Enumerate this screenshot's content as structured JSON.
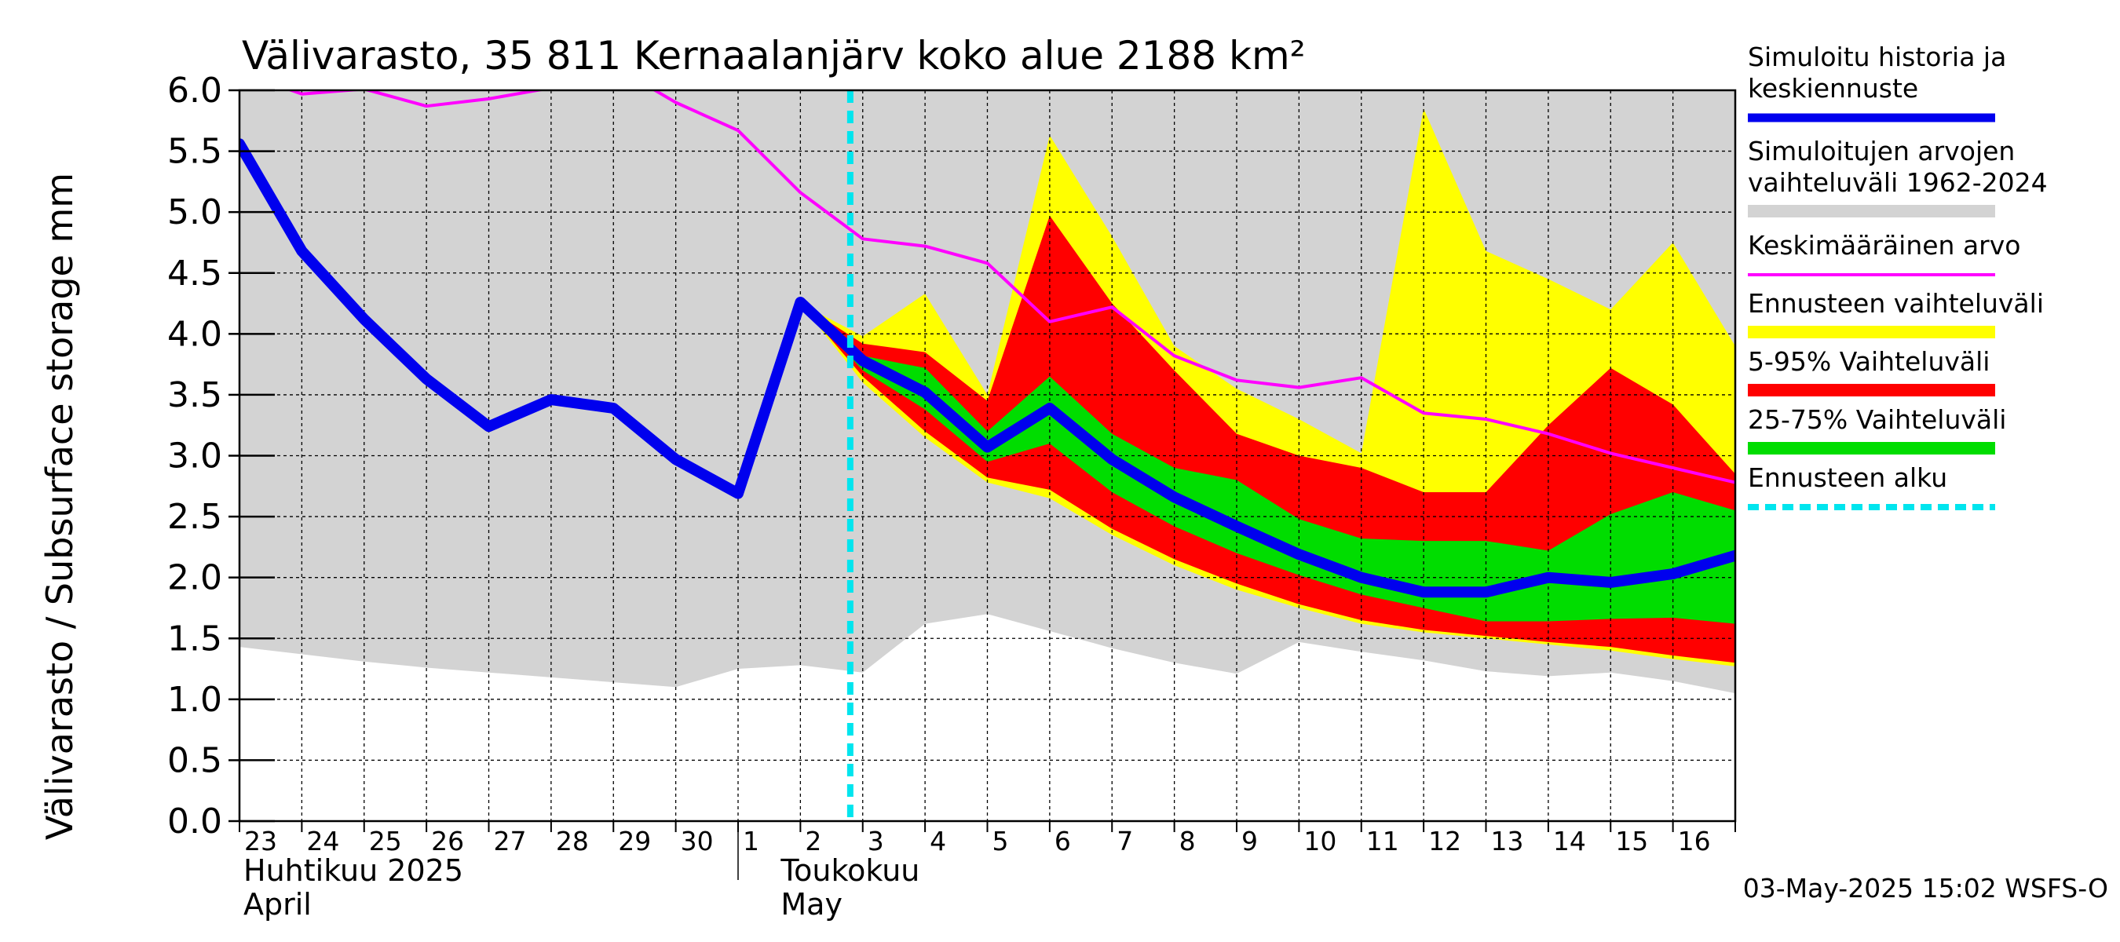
{
  "chart_data": {
    "type": "area",
    "title": "Välivarasto, 35 811 Kernaalanjärv koko alue 2188 km²",
    "ylabel": "Välivarasto / Subsurface storage  mm",
    "ylim": [
      0,
      6.0
    ],
    "yticks": [
      "0.0",
      "0.5",
      "1.0",
      "1.5",
      "2.0",
      "2.5",
      "3.0",
      "3.5",
      "4.0",
      "4.5",
      "5.0",
      "5.5",
      "6.0"
    ],
    "x_labels": [
      "23",
      "24",
      "25",
      "26",
      "27",
      "28",
      "29",
      "30",
      "1",
      "2",
      "3",
      "4",
      "5",
      "6",
      "7",
      "8",
      "9",
      "10",
      "11",
      "12",
      "13",
      "14",
      "15",
      "16"
    ],
    "x_dates": [
      "2025-04-23",
      "2025-04-24",
      "2025-04-25",
      "2025-04-26",
      "2025-04-27",
      "2025-04-28",
      "2025-04-29",
      "2025-04-30",
      "2025-05-01",
      "2025-05-02",
      "2025-05-03",
      "2025-05-04",
      "2025-05-05",
      "2025-05-06",
      "2025-05-07",
      "2025-05-08",
      "2025-05-09",
      "2025-05-10",
      "2025-05-11",
      "2025-05-12",
      "2025-05-13",
      "2025-05-14",
      "2025-05-15",
      "2025-05-16"
    ],
    "month_labels": [
      {
        "line1": "Huhtikuu  2025",
        "line2": "April"
      },
      {
        "line1": "Toukokuu",
        "line2": "May"
      }
    ],
    "forecast_start": "2025-05-03",
    "grid": true,
    "legend_position": "right",
    "series": [
      {
        "name": "Simuloitujen arvojen vaihteluväli 1962-2024",
        "color": "#d3d3d3",
        "kind": "band",
        "x": [
          "2025-04-23",
          "2025-04-24",
          "2025-04-25",
          "2025-04-26",
          "2025-04-27",
          "2025-04-28",
          "2025-04-29",
          "2025-04-30",
          "2025-05-01",
          "2025-05-02",
          "2025-05-03",
          "2025-05-04",
          "2025-05-05",
          "2025-05-06",
          "2025-05-07",
          "2025-05-08",
          "2025-05-09",
          "2025-05-10",
          "2025-05-11",
          "2025-05-12",
          "2025-05-13",
          "2025-05-14",
          "2025-05-15",
          "2025-05-16",
          "2025-05-17"
        ],
        "lower": [
          1.43,
          1.37,
          1.31,
          1.26,
          1.22,
          1.18,
          1.14,
          1.1,
          1.25,
          1.28,
          1.22,
          1.62,
          1.7,
          1.56,
          1.42,
          1.3,
          1.21,
          1.47,
          1.39,
          1.32,
          1.23,
          1.19,
          1.22,
          1.15,
          1.05
        ],
        "upper": [
          6.0,
          6.0,
          6.0,
          6.0,
          6.0,
          6.0,
          6.0,
          6.0,
          6.0,
          6.0,
          6.0,
          6.0,
          6.0,
          6.0,
          6.0,
          6.0,
          6.0,
          6.0,
          6.0,
          6.0,
          6.0,
          6.0,
          6.0,
          6.0,
          6.0
        ]
      },
      {
        "name": "Ennusteen vaihteluväli",
        "color": "#ffff00",
        "kind": "band",
        "x": [
          "2025-05-02",
          "2025-05-03",
          "2025-05-04",
          "2025-05-05",
          "2025-05-06",
          "2025-05-07",
          "2025-05-08",
          "2025-05-09",
          "2025-05-10",
          "2025-05-11",
          "2025-05-12",
          "2025-05-13",
          "2025-05-14",
          "2025-05-15",
          "2025-05-16",
          "2025-05-17"
        ],
        "lower": [
          4.25,
          3.6,
          3.15,
          2.78,
          2.65,
          2.35,
          2.1,
          1.9,
          1.75,
          1.62,
          1.55,
          1.5,
          1.45,
          1.4,
          1.33,
          1.27
        ],
        "upper": [
          4.25,
          3.98,
          4.33,
          3.5,
          5.63,
          4.8,
          3.9,
          3.55,
          3.3,
          3.02,
          5.85,
          4.68,
          4.45,
          4.2,
          4.75,
          3.9
        ]
      },
      {
        "name": "5-95% Vaihteluväli",
        "color": "#ff0000",
        "kind": "band",
        "x": [
          "2025-05-02",
          "2025-05-03",
          "2025-05-04",
          "2025-05-05",
          "2025-05-06",
          "2025-05-07",
          "2025-05-08",
          "2025-05-09",
          "2025-05-10",
          "2025-05-11",
          "2025-05-12",
          "2025-05-13",
          "2025-05-14",
          "2025-05-15",
          "2025-05-16",
          "2025-05-17"
        ],
        "lower": [
          4.25,
          3.65,
          3.2,
          2.82,
          2.72,
          2.4,
          2.15,
          1.95,
          1.78,
          1.65,
          1.57,
          1.52,
          1.47,
          1.43,
          1.36,
          1.3
        ],
        "upper": [
          4.25,
          3.92,
          3.85,
          3.45,
          4.97,
          4.25,
          3.7,
          3.18,
          3.0,
          2.9,
          2.7,
          2.7,
          3.25,
          3.72,
          3.42,
          2.85
        ]
      },
      {
        "name": "25-75% Vaihteluväli",
        "color": "#00dd00",
        "kind": "band",
        "x": [
          "2025-05-02",
          "2025-05-03",
          "2025-05-04",
          "2025-05-05",
          "2025-05-06",
          "2025-05-07",
          "2025-05-08",
          "2025-05-09",
          "2025-05-10",
          "2025-05-11",
          "2025-05-12",
          "2025-05-13",
          "2025-05-14",
          "2025-05-15",
          "2025-05-16",
          "2025-05-17"
        ],
        "lower": [
          4.25,
          3.7,
          3.38,
          2.95,
          3.1,
          2.7,
          2.42,
          2.2,
          2.02,
          1.86,
          1.75,
          1.64,
          1.64,
          1.66,
          1.67,
          1.62
        ],
        "upper": [
          4.25,
          3.82,
          3.72,
          3.2,
          3.65,
          3.18,
          2.9,
          2.8,
          2.48,
          2.32,
          2.3,
          2.3,
          2.22,
          2.52,
          2.7,
          2.55
        ]
      },
      {
        "name": "Keskimääräinen arvo",
        "color": "#ff00ff",
        "kind": "line",
        "x": [
          "2025-04-23",
          "2025-04-24",
          "2025-04-25",
          "2025-04-26",
          "2025-04-27",
          "2025-04-28",
          "2025-04-29",
          "2025-04-30",
          "2025-05-01",
          "2025-05-02",
          "2025-05-03",
          "2025-05-04",
          "2025-05-05",
          "2025-05-06",
          "2025-05-07",
          "2025-05-08",
          "2025-05-09",
          "2025-05-10",
          "2025-05-11",
          "2025-05-12",
          "2025-05-13",
          "2025-05-14",
          "2025-05-15",
          "2025-05-16",
          "2025-05-17"
        ],
        "values": [
          6.15,
          5.97,
          6.01,
          5.87,
          5.93,
          6.02,
          6.2,
          5.9,
          5.67,
          5.16,
          4.78,
          4.72,
          4.58,
          4.1,
          4.22,
          3.82,
          3.62,
          3.56,
          3.64,
          3.35,
          3.3,
          3.18,
          3.02,
          2.9,
          2.78
        ]
      },
      {
        "name": "Simuloitu historia ja keskiennuste",
        "color": "#0000ee",
        "kind": "line",
        "x": [
          "2025-04-23",
          "2025-04-24",
          "2025-04-25",
          "2025-04-26",
          "2025-04-27",
          "2025-04-28",
          "2025-04-29",
          "2025-04-30",
          "2025-05-01",
          "2025-05-02",
          "2025-05-03",
          "2025-05-04",
          "2025-05-05",
          "2025-05-06",
          "2025-05-07",
          "2025-05-08",
          "2025-05-09",
          "2025-05-10",
          "2025-05-11",
          "2025-05-12",
          "2025-05-13",
          "2025-05-14",
          "2025-05-15",
          "2025-05-16",
          "2025-05-17"
        ],
        "values": [
          5.56,
          4.68,
          4.12,
          3.63,
          3.24,
          3.46,
          3.39,
          2.97,
          2.69,
          4.26,
          3.78,
          3.52,
          3.07,
          3.39,
          2.97,
          2.66,
          2.42,
          2.19,
          2.0,
          1.88,
          1.88,
          2.0,
          1.96,
          2.03,
          2.18
        ]
      },
      {
        "name": "Ennusteen alku",
        "color": "#00e5ee",
        "kind": "marker-line"
      }
    ],
    "legend": [
      {
        "label": "Simuloitu historia ja keskiennuste",
        "lines": [
          "Simuloitu historia ja",
          "keskiennuste"
        ],
        "color": "#0000ee",
        "style": "thick"
      },
      {
        "label": "Simuloitujen arvojen vaihteluväli 1962-2024",
        "lines": [
          "Simuloitujen arvojen",
          "vaihteluväli 1962-2024"
        ],
        "color": "#d3d3d3",
        "style": "band"
      },
      {
        "label": "Keskimääräinen arvo",
        "lines": [
          "Keskimääräinen arvo"
        ],
        "color": "#ff00ff",
        "style": "thin"
      },
      {
        "label": "Ennusteen vaihteluväli",
        "lines": [
          "Ennusteen vaihteluväli"
        ],
        "color": "#ffff00",
        "style": "band"
      },
      {
        "label": "5-95% Vaihteluväli",
        "lines": [
          "5-95% Vaihteluväli"
        ],
        "color": "#ff0000",
        "style": "band"
      },
      {
        "label": "25-75% Vaihteluväli",
        "lines": [
          "25-75% Vaihteluväli"
        ],
        "color": "#00dd00",
        "style": "band"
      },
      {
        "label": "Ennusteen alku",
        "lines": [
          "Ennusteen alku"
        ],
        "color": "#00e5ee",
        "style": "dashed"
      }
    ],
    "footer": "03-May-2025 15:02 WSFS-O"
  }
}
